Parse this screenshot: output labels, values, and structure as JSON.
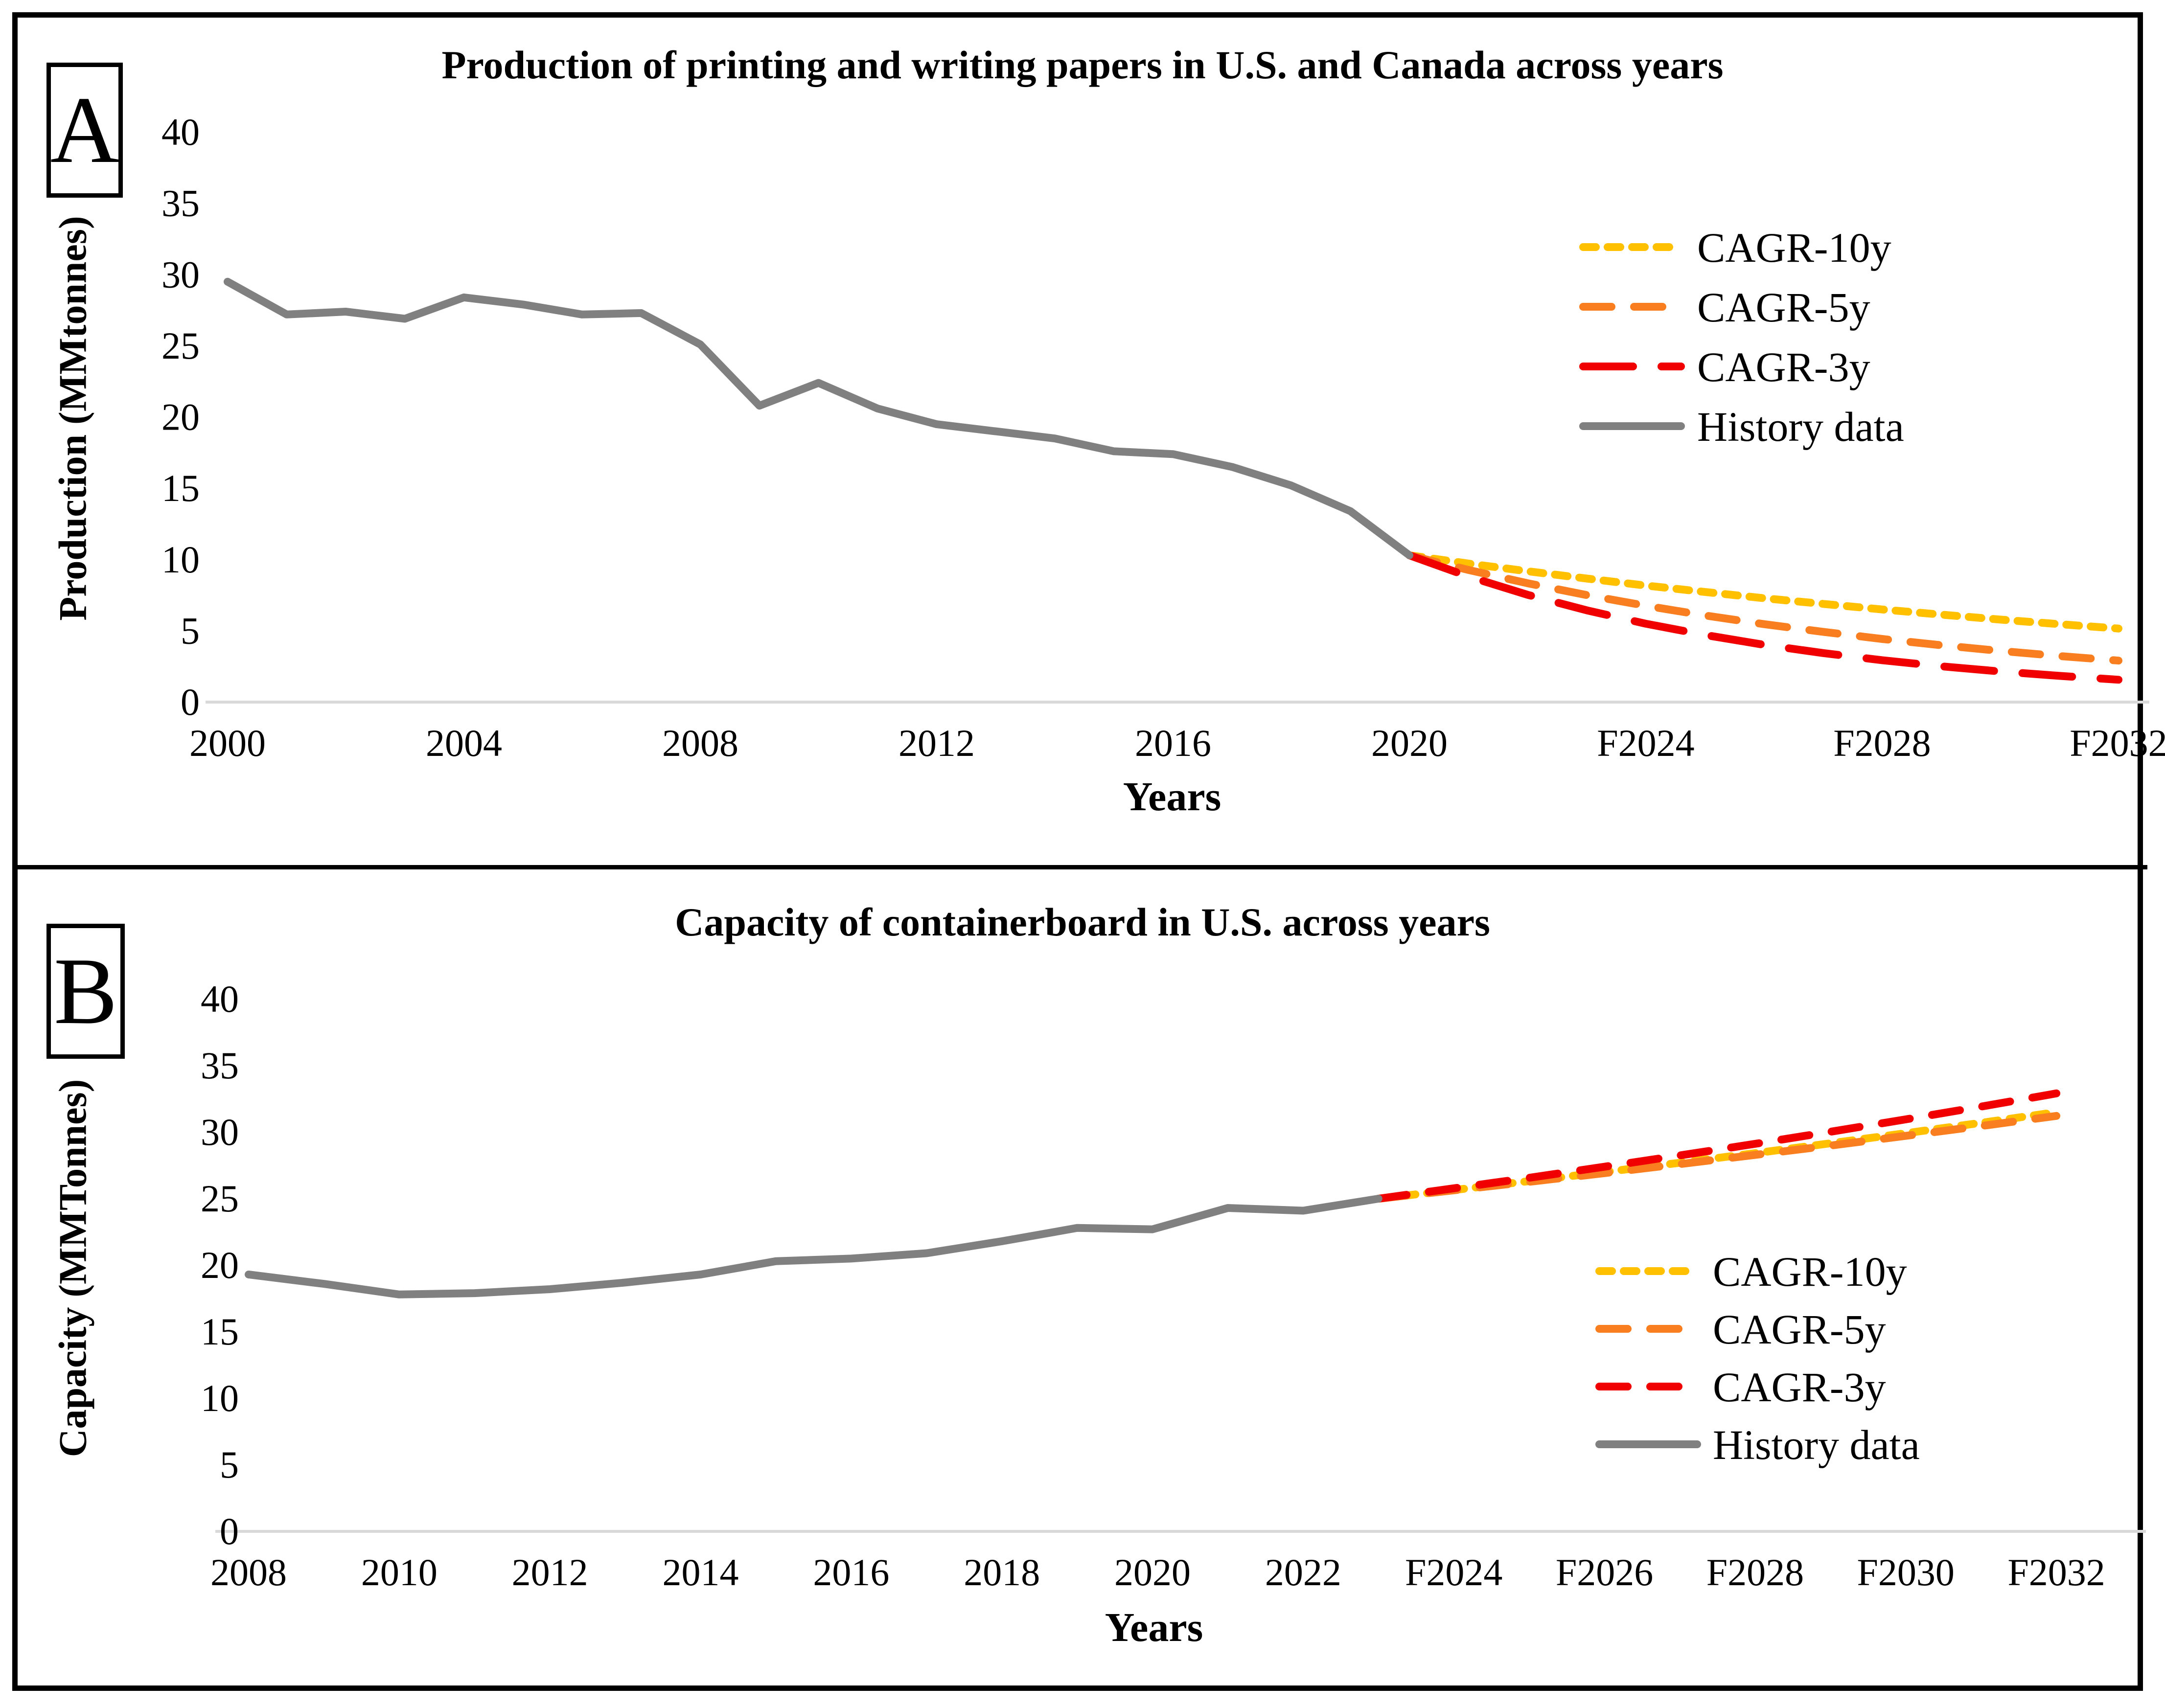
{
  "panels": [
    {
      "label": "A"
    },
    {
      "label": "B"
    }
  ],
  "chart_data": [
    {
      "type": "line",
      "title": "Production of printing and writing papers in U.S. and Canada across years",
      "xlabel": "Years",
      "ylabel": "Production (MMtonnes)",
      "ylim": [
        0,
        40
      ],
      "yticks": [
        0,
        5,
        10,
        15,
        20,
        25,
        30,
        35,
        40
      ],
      "xticks": [
        "2000",
        "2004",
        "2008",
        "2012",
        "2016",
        "2020",
        "F2024",
        "F2028",
        "F2032"
      ],
      "grid": false,
      "legend_position": "upper right",
      "axis_line_color": "#D9D9D9",
      "series": [
        {
          "name": "CAGR-10y",
          "color": "#FFC000",
          "line_style": "dotted",
          "x": [
            2020,
            2021,
            2022,
            2023,
            2024,
            2025,
            2026,
            2027,
            2028,
            2029,
            2030,
            2031,
            2032
          ],
          "values": [
            10.3,
            9.72,
            9.18,
            8.67,
            8.18,
            7.73,
            7.29,
            6.89,
            6.5,
            6.14,
            5.79,
            5.47,
            5.16
          ]
        },
        {
          "name": "CAGR-5y",
          "color": "#F97E1F",
          "line_style": "dashed",
          "x": [
            2020,
            2021,
            2022,
            2023,
            2024,
            2025,
            2026,
            2027,
            2028,
            2029,
            2030,
            2031,
            2032
          ],
          "values": [
            10.3,
            9.27,
            8.34,
            7.51,
            6.76,
            6.08,
            5.47,
            4.93,
            4.43,
            3.99,
            3.59,
            3.23,
            2.91
          ]
        },
        {
          "name": "CAGR-3y",
          "color": "#F00000",
          "line_style": "long-dashed",
          "x": [
            2020,
            2021,
            2022,
            2023,
            2024,
            2025,
            2026,
            2027,
            2028,
            2029,
            2030,
            2031,
            2032
          ],
          "values": [
            10.3,
            8.81,
            7.53,
            6.44,
            5.5,
            4.71,
            4.02,
            3.44,
            2.94,
            2.51,
            2.15,
            1.84,
            1.57
          ]
        },
        {
          "name": "History data",
          "color": "#808080",
          "line_style": "solid",
          "x": [
            2000,
            2001,
            2002,
            2003,
            2004,
            2005,
            2006,
            2007,
            2008,
            2009,
            2010,
            2011,
            2012,
            2013,
            2014,
            2015,
            2016,
            2017,
            2018,
            2019,
            2020
          ],
          "values": [
            29.5,
            27.2,
            27.4,
            26.9,
            28.4,
            27.9,
            27.2,
            27.3,
            25.1,
            20.8,
            22.4,
            20.6,
            19.5,
            19.0,
            18.5,
            17.6,
            17.4,
            16.5,
            15.2,
            13.4,
            10.3
          ]
        }
      ]
    },
    {
      "type": "line",
      "title": "Capacity of containerboard in U.S. across years",
      "xlabel": "Years",
      "ylabel": "Capacity (MMTonnes)",
      "ylim": [
        0,
        40
      ],
      "yticks": [
        0,
        5,
        10,
        15,
        20,
        25,
        30,
        35,
        40
      ],
      "xticks": [
        "2008",
        "2010",
        "2012",
        "2014",
        "2016",
        "2018",
        "2020",
        "2022",
        "F2024",
        "F2026",
        "F2028",
        "F2030",
        "F2032"
      ],
      "grid": false,
      "legend_position": "lower right",
      "axis_line_color": "#D9D9D9",
      "series": [
        {
          "name": "CAGR-10y",
          "color": "#FFC000",
          "line_style": "dotted",
          "x": [
            2023,
            2024,
            2025,
            2026,
            2027,
            2028,
            2029,
            2030,
            2031,
            2032
          ],
          "values": [
            25.0,
            25.65,
            26.32,
            27.0,
            27.7,
            28.42,
            29.16,
            29.92,
            30.7,
            31.5
          ]
        },
        {
          "name": "CAGR-5y",
          "color": "#F97E1F",
          "line_style": "dashed",
          "x": [
            2023,
            2024,
            2025,
            2026,
            2027,
            2028,
            2029,
            2030,
            2031,
            2032
          ],
          "values": [
            25.0,
            25.63,
            26.27,
            26.92,
            27.6,
            28.29,
            28.99,
            29.72,
            30.46,
            31.22
          ]
        },
        {
          "name": "CAGR-3y",
          "color": "#F00000",
          "line_style": "dashed",
          "x": [
            2023,
            2024,
            2025,
            2026,
            2027,
            2028,
            2029,
            2030,
            2031,
            2032
          ],
          "values": [
            25.0,
            25.78,
            26.57,
            27.4,
            28.25,
            29.12,
            30.03,
            30.96,
            31.92,
            32.91
          ]
        },
        {
          "name": "History data",
          "color": "#808080",
          "line_style": "solid",
          "x": [
            2008,
            2009,
            2010,
            2011,
            2012,
            2013,
            2014,
            2015,
            2016,
            2017,
            2018,
            2019,
            2020,
            2021,
            2022,
            2023
          ],
          "values": [
            19.3,
            18.6,
            17.8,
            17.9,
            18.2,
            18.7,
            19.3,
            20.3,
            20.5,
            20.9,
            21.8,
            22.8,
            22.7,
            24.3,
            24.1,
            25.0
          ]
        }
      ]
    }
  ]
}
